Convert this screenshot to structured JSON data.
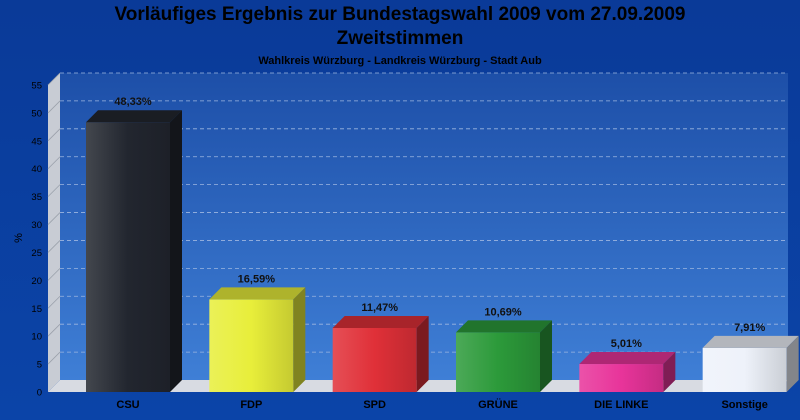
{
  "page": {
    "title_line1": "Vorläufiges Ergebnis zur Bundestagswahl 2009 vom 27.09.2009",
    "title_line2": "Zweitstimmen",
    "subtitle": "Wahlkreis Würzburg - Landkreis Würzburg - Stadt Aub"
  },
  "chart_data": {
    "type": "bar",
    "title": "Vorläufiges Ergebnis zur Bundestagswahl 2009 vom 27.09.2009",
    "subtitle": "Wahlkreis Würzburg - Landkreis Würzburg - Stadt Aub",
    "xlabel": "",
    "ylabel": "%",
    "ylim": [
      0,
      55
    ],
    "yticks": [
      0,
      5,
      10,
      15,
      20,
      25,
      30,
      35,
      40,
      45,
      50,
      55
    ],
    "grid": true,
    "categories": [
      "CSU",
      "FDP",
      "SPD",
      "GRÜNE",
      "DIE LINKE",
      "Sonstige"
    ],
    "values": [
      48.33,
      16.59,
      11.47,
      10.69,
      5.01,
      7.91
    ],
    "value_labels": [
      "48,33%",
      "16,59%",
      "11,47%",
      "10,69%",
      "5,01%",
      "7,91%"
    ],
    "colors": [
      "#22262f",
      "#e8ee3a",
      "#e03038",
      "#2c9a3a",
      "#e8349a",
      "#eef2fa"
    ]
  }
}
